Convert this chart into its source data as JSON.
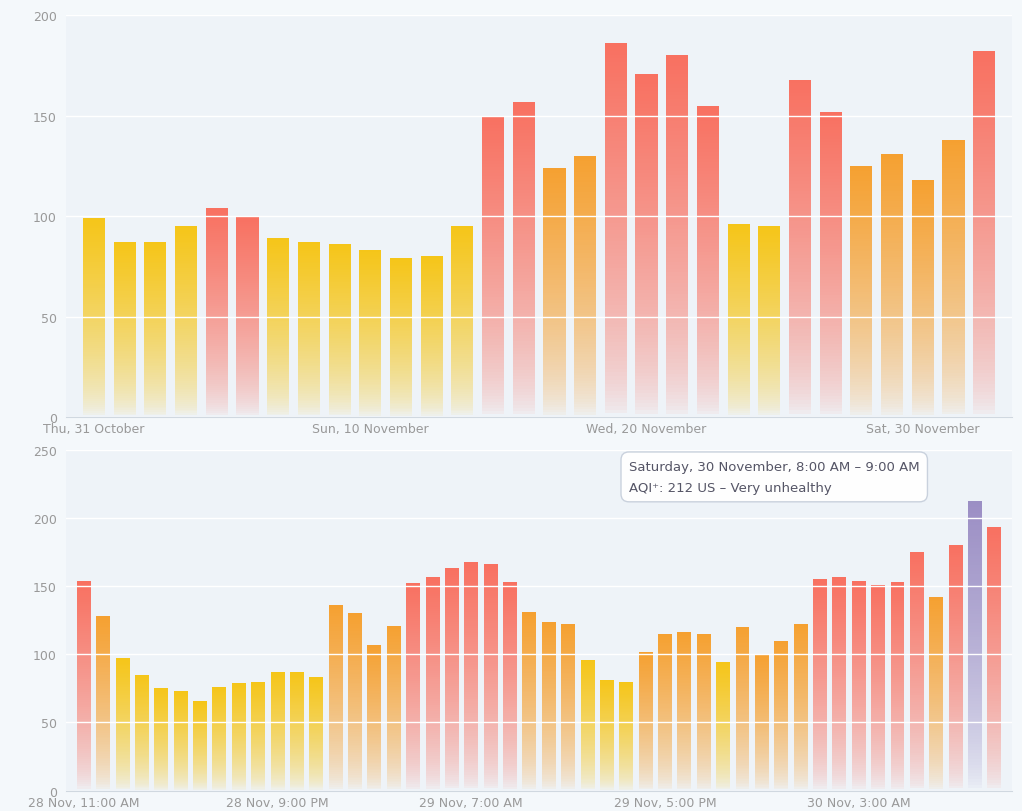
{
  "top_chart": {
    "ylim": [
      0,
      200
    ],
    "yticks": [
      0,
      50,
      100,
      150,
      200
    ],
    "xlabel_ticks": [
      "Thu, 31 October",
      "Sun, 10 November",
      "Wed, 20 November",
      "Sat, 30 November"
    ],
    "xlabel_tick_positions": [
      0,
      9,
      18,
      27
    ],
    "background_color": "#eef3f8",
    "bars": [
      {
        "value": 99,
        "color": "#f5c518"
      },
      {
        "value": 87,
        "color": "#f5c518"
      },
      {
        "value": 87,
        "color": "#f5c518"
      },
      {
        "value": 95,
        "color": "#f5c518"
      },
      {
        "value": 104,
        "color": "#f87060"
      },
      {
        "value": 100,
        "color": "#f87060"
      },
      {
        "value": 89,
        "color": "#f5c518"
      },
      {
        "value": 87,
        "color": "#f5c518"
      },
      {
        "value": 86,
        "color": "#f5c518"
      },
      {
        "value": 83,
        "color": "#f5c518"
      },
      {
        "value": 79,
        "color": "#f5c518"
      },
      {
        "value": 80,
        "color": "#f5c518"
      },
      {
        "value": 95,
        "color": "#f5c518"
      },
      {
        "value": 150,
        "color": "#f87060"
      },
      {
        "value": 157,
        "color": "#f87060"
      },
      {
        "value": 124,
        "color": "#f5a030"
      },
      {
        "value": 130,
        "color": "#f5a030"
      },
      {
        "value": 186,
        "color": "#f87060"
      },
      {
        "value": 171,
        "color": "#f87060"
      },
      {
        "value": 180,
        "color": "#f87060"
      },
      {
        "value": 155,
        "color": "#f87060"
      },
      {
        "value": 96,
        "color": "#f5c518"
      },
      {
        "value": 95,
        "color": "#f5c518"
      },
      {
        "value": 168,
        "color": "#f87060"
      },
      {
        "value": 152,
        "color": "#f87060"
      },
      {
        "value": 125,
        "color": "#f5a030"
      },
      {
        "value": 131,
        "color": "#f5a030"
      },
      {
        "value": 118,
        "color": "#f5a030"
      },
      {
        "value": 138,
        "color": "#f5a030"
      },
      {
        "value": 182,
        "color": "#f87060"
      }
    ]
  },
  "bottom_chart": {
    "ylim": [
      0,
      250
    ],
    "yticks": [
      0,
      50,
      100,
      150,
      200,
      250
    ],
    "xlabel_ticks": [
      "28 Nov, 11:00 AM",
      "28 Nov, 9:00 PM",
      "29 Nov, 7:00 AM",
      "29 Nov, 5:00 PM",
      "30 Nov, 3:00 AM"
    ],
    "xlabel_tick_positions": [
      0,
      10,
      20,
      30,
      40
    ],
    "background_color": "#eef3f8",
    "tooltip_text_line1": "Saturday, 30 November, 8:00 AM – 9:00 AM",
    "tooltip_text_line2": "AQI⁺: 212 US – Very unhealthy",
    "tooltip_bold_value": "212",
    "bars": [
      {
        "value": 154,
        "color": "#f87060"
      },
      {
        "value": 128,
        "color": "#f5a030"
      },
      {
        "value": 97,
        "color": "#f5c518"
      },
      {
        "value": 85,
        "color": "#f5c518"
      },
      {
        "value": 75,
        "color": "#f5c518"
      },
      {
        "value": 73,
        "color": "#f5c518"
      },
      {
        "value": 66,
        "color": "#f5c518"
      },
      {
        "value": 76,
        "color": "#f5c518"
      },
      {
        "value": 79,
        "color": "#f5c518"
      },
      {
        "value": 80,
        "color": "#f5c518"
      },
      {
        "value": 87,
        "color": "#f5c518"
      },
      {
        "value": 87,
        "color": "#f5c518"
      },
      {
        "value": 83,
        "color": "#f5c518"
      },
      {
        "value": 136,
        "color": "#f5a030"
      },
      {
        "value": 130,
        "color": "#f5a030"
      },
      {
        "value": 107,
        "color": "#f5a030"
      },
      {
        "value": 121,
        "color": "#f5a030"
      },
      {
        "value": 152,
        "color": "#f87060"
      },
      {
        "value": 157,
        "color": "#f87060"
      },
      {
        "value": 163,
        "color": "#f87060"
      },
      {
        "value": 168,
        "color": "#f87060"
      },
      {
        "value": 166,
        "color": "#f87060"
      },
      {
        "value": 153,
        "color": "#f87060"
      },
      {
        "value": 131,
        "color": "#f5a030"
      },
      {
        "value": 124,
        "color": "#f5a030"
      },
      {
        "value": 122,
        "color": "#f5a030"
      },
      {
        "value": 96,
        "color": "#f5c518"
      },
      {
        "value": 81,
        "color": "#f5c518"
      },
      {
        "value": 80,
        "color": "#f5c518"
      },
      {
        "value": 102,
        "color": "#f5a030"
      },
      {
        "value": 115,
        "color": "#f5a030"
      },
      {
        "value": 116,
        "color": "#f5a030"
      },
      {
        "value": 115,
        "color": "#f5a030"
      },
      {
        "value": 94,
        "color": "#f5c518"
      },
      {
        "value": 120,
        "color": "#f5a030"
      },
      {
        "value": 100,
        "color": "#f5a030"
      },
      {
        "value": 110,
        "color": "#f5a030"
      },
      {
        "value": 122,
        "color": "#f5a030"
      },
      {
        "value": 155,
        "color": "#f87060"
      },
      {
        "value": 157,
        "color": "#f87060"
      },
      {
        "value": 154,
        "color": "#f87060"
      },
      {
        "value": 151,
        "color": "#f87060"
      },
      {
        "value": 153,
        "color": "#f87060"
      },
      {
        "value": 175,
        "color": "#f87060"
      },
      {
        "value": 142,
        "color": "#f5a030"
      },
      {
        "value": 180,
        "color": "#f87060"
      },
      {
        "value": 212,
        "color": "#9b8ec4"
      },
      {
        "value": 193,
        "color": "#f87060"
      }
    ]
  },
  "fig_bg": "#f4f8fb"
}
